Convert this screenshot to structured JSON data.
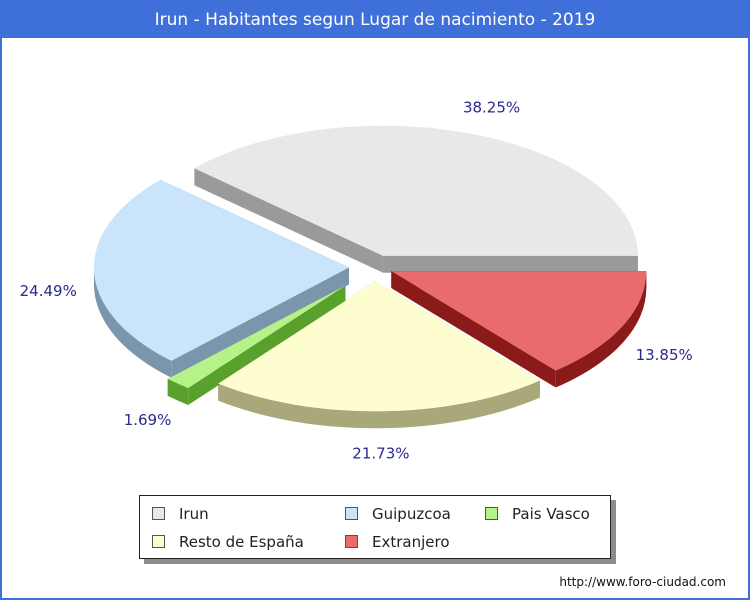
{
  "chart_data": {
    "type": "pie",
    "title": "Irun - Habitantes segun Lugar de nacimiento - 2019",
    "slices": [
      {
        "name": "Irun",
        "value": 38.25,
        "label": "38.25%",
        "color": "#e8e8e8",
        "side_color": "#9a9a9a"
      },
      {
        "name": "Extranjero",
        "value": 13.85,
        "label": "13.85%",
        "color": "#ea6b6b",
        "side_color": "#8b1a1a"
      },
      {
        "name": "Resto de España",
        "value": 21.73,
        "label": "21.73%",
        "color": "#fdfdcf",
        "side_color": "#a8a87a"
      },
      {
        "name": "Pais Vasco",
        "value": 1.69,
        "label": "1.69%",
        "color": "#b6f28a",
        "side_color": "#5aa02c"
      },
      {
        "name": "Guipuzcoa",
        "value": 24.49,
        "label": "24.49%",
        "color": "#c9e4fb",
        "side_color": "#7b95ad"
      }
    ],
    "legend": [
      {
        "name": "Irun",
        "color": "#e8e8e8"
      },
      {
        "name": "Guipuzcoa",
        "color": "#c9e4fb"
      },
      {
        "name": "Pais Vasco",
        "color": "#b6f28a"
      },
      {
        "name": "Resto de España",
        "color": "#fdfdcf"
      },
      {
        "name": "Extranjero",
        "color": "#ea6b6b"
      }
    ],
    "legend_placement": "bottom",
    "label_color": "#2a2a8c"
  },
  "footer": {
    "url": "http://www.foro-ciudad.com"
  }
}
